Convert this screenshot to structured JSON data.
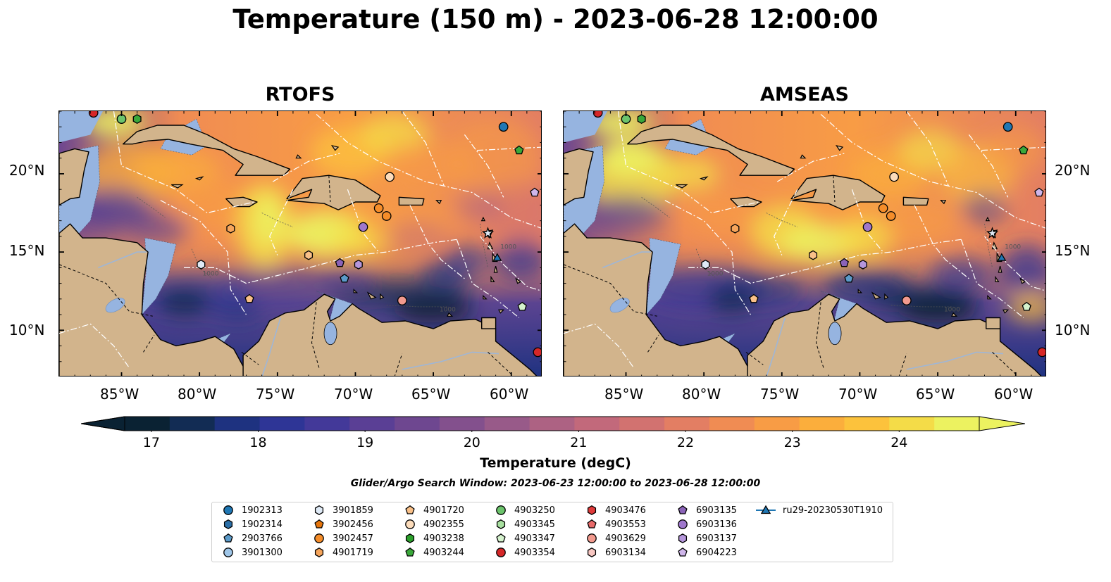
{
  "title": "Temperature (150 m) - 2023-06-28 12:00:00",
  "panels": [
    {
      "title": "RTOFS"
    },
    {
      "title": "AMSEAS"
    }
  ],
  "lat_labels": [
    "20°N",
    "15°N",
    "10°N"
  ],
  "lon_labels": [
    "85°W",
    "80°W",
    "75°W",
    "70°W",
    "65°W",
    "60°W"
  ],
  "colorbar": {
    "label": "Temperature (degC)",
    "ticks": [
      "17",
      "18",
      "19",
      "20",
      "21",
      "22",
      "23",
      "24"
    ],
    "colors": [
      "#0a2233",
      "#122c54",
      "#1e3280",
      "#2e3596",
      "#433999",
      "#5a3f95",
      "#6e4790",
      "#83508d",
      "#985a89",
      "#ad6283",
      "#c2697b",
      "#d27270",
      "#e37e63",
      "#f08c53",
      "#f89c45",
      "#fbae3c",
      "#fcc23c",
      "#f4dc48",
      "#ecf260"
    ]
  },
  "search_window": "Glider/Argo Search Window: 2023-06-23 12:00:00 to 2023-06-28 12:00:00",
  "legend": [
    {
      "id": "1902313",
      "marker": "circle",
      "color": "#1f77b4"
    },
    {
      "id": "1902314",
      "marker": "hexagon",
      "color": "#2b6fa8"
    },
    {
      "id": "2903766",
      "marker": "pentagon",
      "color": "#5b9ac9"
    },
    {
      "id": "3901300",
      "marker": "circle",
      "color": "#9fc6e8"
    },
    {
      "id": "3901859",
      "marker": "hexagon",
      "color": "#dfeaf6"
    },
    {
      "id": "3902456",
      "marker": "pentagon",
      "color": "#e6750c"
    },
    {
      "id": "3902457",
      "marker": "circle",
      "color": "#f58d2a"
    },
    {
      "id": "4901719",
      "marker": "hexagon",
      "color": "#f6a55b"
    },
    {
      "id": "4901720",
      "marker": "pentagon",
      "color": "#f9c088"
    },
    {
      "id": "4902355",
      "marker": "circle",
      "color": "#fcdcbb"
    },
    {
      "id": "4903238",
      "marker": "hexagon",
      "color": "#2ca02c"
    },
    {
      "id": "4903244",
      "marker": "pentagon",
      "color": "#3aa83a"
    },
    {
      "id": "4903250",
      "marker": "circle",
      "color": "#6cc46c"
    },
    {
      "id": "4903345",
      "marker": "hexagon",
      "color": "#a8e0a0"
    },
    {
      "id": "4903347",
      "marker": "pentagon",
      "color": "#d5f2cd"
    },
    {
      "id": "4903354",
      "marker": "circle",
      "color": "#d62728"
    },
    {
      "id": "4903476",
      "marker": "hexagon",
      "color": "#e03a3a"
    },
    {
      "id": "4903553",
      "marker": "pentagon",
      "color": "#e86a6a"
    },
    {
      "id": "4903629",
      "marker": "circle",
      "color": "#f29a8e"
    },
    {
      "id": "6903134",
      "marker": "hexagon",
      "color": "#f8c7c2"
    },
    {
      "id": "6903135",
      "marker": "pentagon",
      "color": "#8b63b8"
    },
    {
      "id": "6903136",
      "marker": "circle",
      "color": "#9f77cc"
    },
    {
      "id": "6903137",
      "marker": "hexagon",
      "color": "#b596db"
    },
    {
      "id": "6904223",
      "marker": "pentagon",
      "color": "#cfb6ea"
    },
    {
      "id": "ru29-20230530T1910",
      "marker": "triangle-line",
      "color": "#1f77b4"
    }
  ],
  "floats": [
    {
      "lon": -60.5,
      "lat": 23.0,
      "color": "#1f77b4",
      "marker": "circle"
    },
    {
      "lon": -59.5,
      "lat": 21.5,
      "color": "#3aa83a",
      "marker": "pentagon"
    },
    {
      "lon": -58.5,
      "lat": 18.8,
      "color": "#cfb6ea",
      "marker": "pentagon"
    },
    {
      "lon": -67.8,
      "lat": 19.8,
      "color": "#fcdcbb",
      "marker": "circle"
    },
    {
      "lon": -68.5,
      "lat": 17.8,
      "color": "#f58d2a",
      "marker": "circle"
    },
    {
      "lon": -68.0,
      "lat": 17.3,
      "color": "#f58d2a",
      "marker": "circle"
    },
    {
      "lon": -69.5,
      "lat": 16.6,
      "color": "#9f77cc",
      "marker": "circle"
    },
    {
      "lon": -78.0,
      "lat": 16.5,
      "color": "#f6a55b",
      "marker": "hexagon"
    },
    {
      "lon": -73.0,
      "lat": 14.8,
      "color": "#f9c088",
      "marker": "hexagon"
    },
    {
      "lon": -71.0,
      "lat": 14.3,
      "color": "#8b63b8",
      "marker": "pentagon"
    },
    {
      "lon": -69.8,
      "lat": 14.2,
      "color": "#b596db",
      "marker": "hexagon"
    },
    {
      "lon": -70.7,
      "lat": 13.3,
      "color": "#5b9ac9",
      "marker": "pentagon"
    },
    {
      "lon": -79.9,
      "lat": 14.2,
      "color": "#dfeaf6",
      "marker": "hexagon"
    },
    {
      "lon": -76.8,
      "lat": 12.0,
      "color": "#f9c088",
      "marker": "pentagon"
    },
    {
      "lon": -67.0,
      "lat": 11.9,
      "color": "#f29a8e",
      "marker": "circle"
    },
    {
      "lon": -59.3,
      "lat": 11.5,
      "color": "#d5f2cd",
      "marker": "pentagon"
    },
    {
      "lon": -60.9,
      "lat": 14.6,
      "color": "#1f77b4",
      "marker": "triangle"
    },
    {
      "lon": -61.5,
      "lat": 16.2,
      "color": "#dfeaf6",
      "marker": "star"
    },
    {
      "lon": -85.0,
      "lat": 23.5,
      "color": "#6cc46c",
      "marker": "circle"
    },
    {
      "lon": -84.0,
      "lat": 23.5,
      "color": "#3aa83a",
      "marker": "hexagon"
    },
    {
      "lon": -86.8,
      "lat": 23.9,
      "color": "#d62728",
      "marker": "circle"
    },
    {
      "lon": -58.3,
      "lat": 8.6,
      "color": "#d62728",
      "marker": "circle"
    }
  ],
  "depth_labels": [
    "1000",
    "1000",
    "1000"
  ]
}
